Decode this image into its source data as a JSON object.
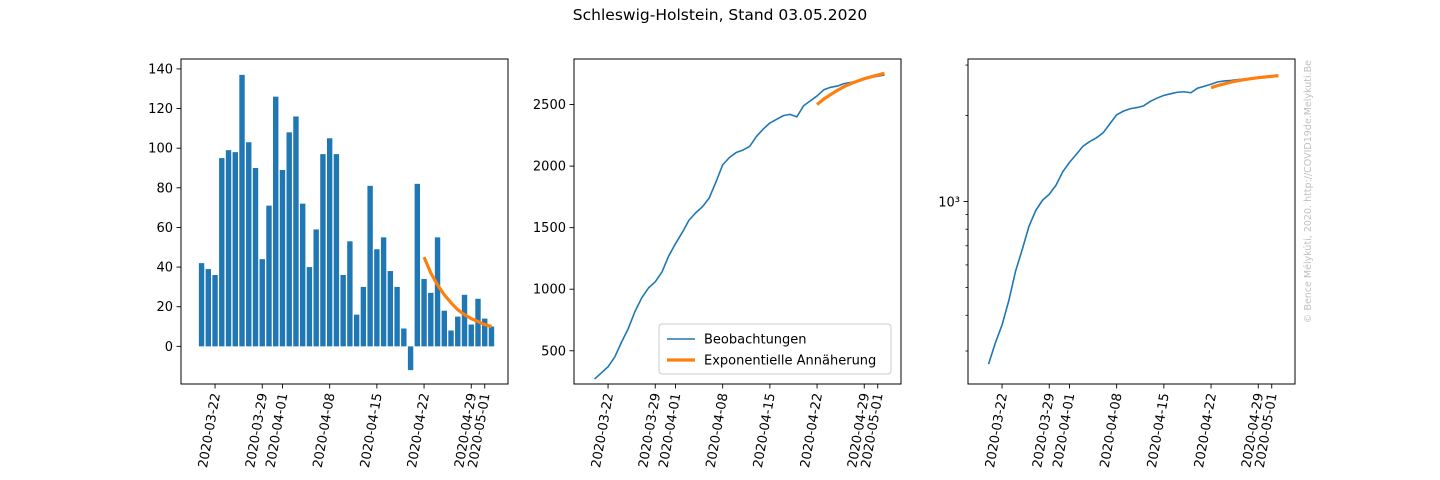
{
  "suptitle": "Schleswig-Holstein, Stand 03.05.2020",
  "watermark": "© Bence Mélykúti, 2020. http://COVID19de.Melykuti.Be",
  "colors": {
    "observed": "#1f77b4",
    "fit": "#ff7f0e"
  },
  "date_ticks": [
    "2020-03-22",
    "2020-03-29",
    "2020-04-01",
    "2020-04-08",
    "2020-04-15",
    "2020-04-22",
    "2020-04-29",
    "2020-05-01"
  ],
  "chart_data": [
    {
      "type": "bar",
      "x_start": "2020-03-20",
      "x_end": "2020-05-02",
      "yticks": [
        0,
        20,
        40,
        60,
        80,
        100,
        120,
        140
      ],
      "ylim": [
        -19,
        145
      ],
      "series": [
        {
          "values": [
            42,
            39,
            36,
            95,
            99,
            98,
            137,
            103,
            90,
            44,
            71,
            126,
            89,
            108,
            116,
            72,
            40,
            59,
            97,
            105,
            97,
            36,
            53,
            16,
            30,
            81,
            49,
            55,
            38,
            30,
            9,
            -12,
            82,
            34,
            27,
            55,
            18,
            8,
            15,
            26,
            11,
            24,
            14,
            10
          ]
        },
        {
          "name": "Exponentielle Annäherung",
          "x_start": "2020-04-22",
          "x_end": "2020-05-02",
          "values": [
            45,
            37,
            31,
            26,
            22,
            18.5,
            16,
            14,
            12.5,
            11,
            10
          ]
        }
      ]
    },
    {
      "type": "line",
      "x_start": "2020-03-20",
      "x_end": "2020-05-02",
      "yticks": [
        500,
        1000,
        1500,
        2000,
        2500
      ],
      "ylim": [
        230,
        2870
      ],
      "legend": [
        "Beobachtungen",
        "Exponentielle Annäherung"
      ],
      "legend_position": "lower right",
      "series": [
        {
          "name": "Beobachtungen",
          "values": [
            270,
            320,
            370,
            450,
            570,
            680,
            820,
            930,
            1010,
            1060,
            1140,
            1270,
            1370,
            1460,
            1560,
            1620,
            1670,
            1740,
            1870,
            2010,
            2070,
            2110,
            2130,
            2160,
            2240,
            2300,
            2350,
            2380,
            2410,
            2420,
            2400,
            2490,
            2530,
            2570,
            2620,
            2640,
            2650,
            2670,
            2680,
            2690,
            2710,
            2720,
            2730,
            2740
          ]
        },
        {
          "name": "Exponentielle Annäherung",
          "x_start": "2020-04-22",
          "values": [
            2500,
            2545,
            2580,
            2615,
            2645,
            2670,
            2690,
            2710,
            2725,
            2740,
            2755
          ]
        }
      ]
    },
    {
      "type": "line",
      "yscale": "log",
      "x_start": "2020-03-20",
      "x_end": "2020-05-02",
      "ylim": [
        230,
        3150
      ],
      "ytick_label": "10³",
      "series": [
        {
          "name": "Beobachtungen",
          "values": [
            270,
            320,
            370,
            450,
            570,
            680,
            820,
            930,
            1010,
            1060,
            1140,
            1270,
            1370,
            1460,
            1560,
            1620,
            1670,
            1740,
            1870,
            2010,
            2070,
            2110,
            2130,
            2160,
            2240,
            2300,
            2350,
            2380,
            2410,
            2420,
            2400,
            2490,
            2530,
            2570,
            2620,
            2640,
            2650,
            2670,
            2680,
            2690,
            2710,
            2720,
            2730,
            2740
          ]
        },
        {
          "name": "Exponentielle Annäherung",
          "x_start": "2020-04-22",
          "values": [
            2500,
            2545,
            2580,
            2615,
            2645,
            2670,
            2690,
            2710,
            2725,
            2740,
            2755
          ]
        }
      ]
    }
  ]
}
